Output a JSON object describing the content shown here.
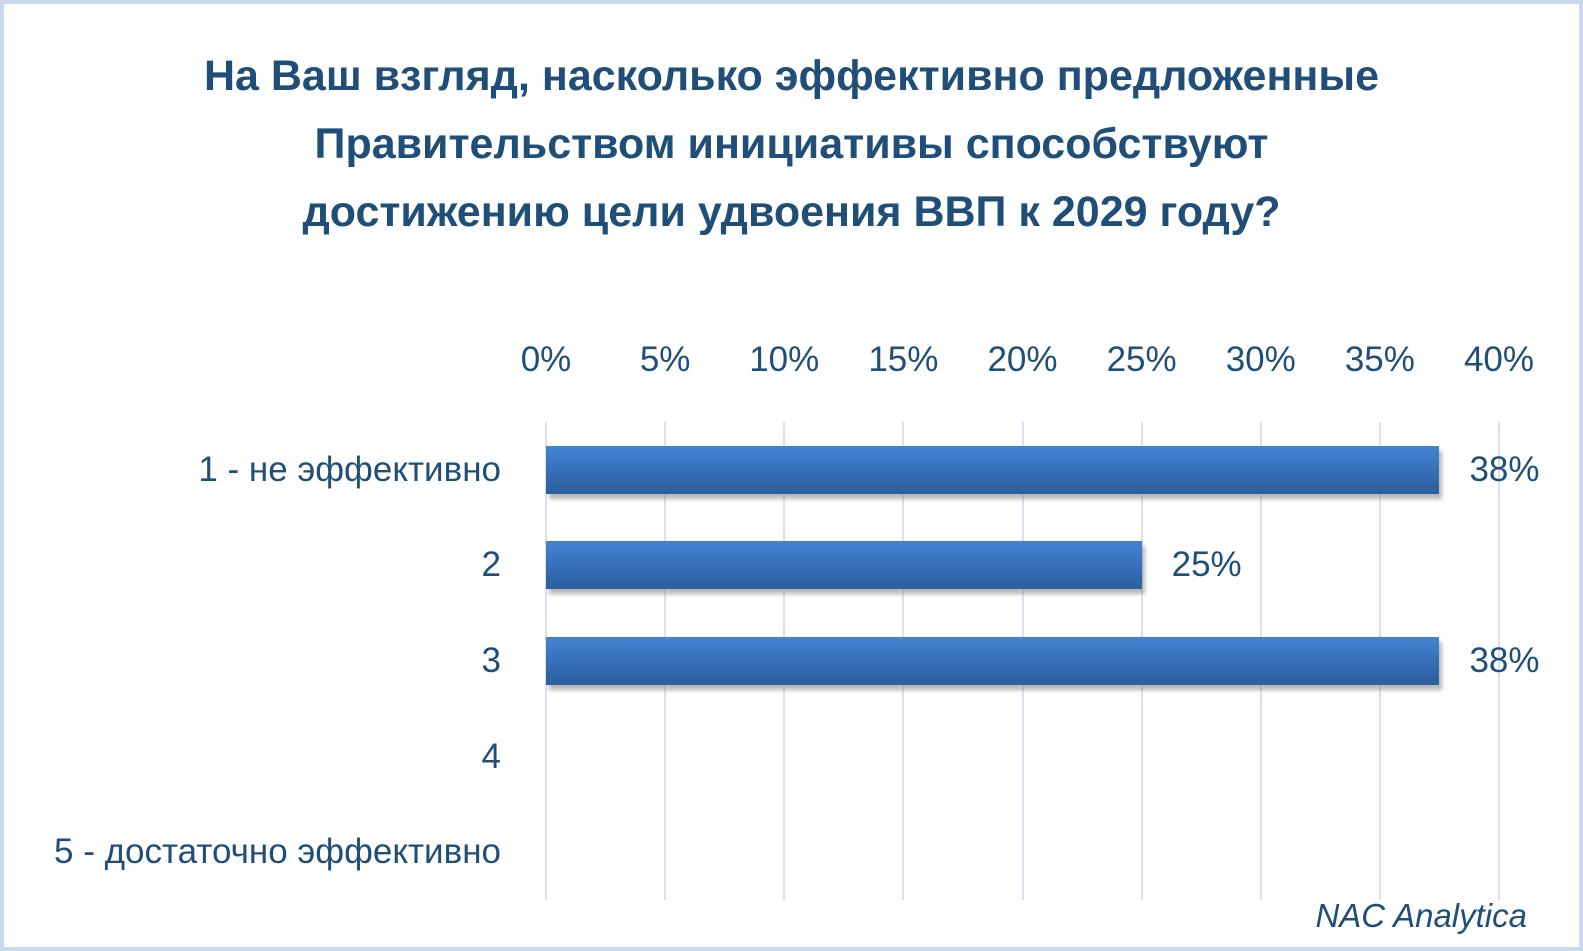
{
  "frame": {
    "border_color": "#c9d9ed",
    "background_color": "#ffffff"
  },
  "title": {
    "text": "На Ваш взгляд, насколько эффективно предложенные Правительством инициативы способствуют достижению цели удвоения ВВП к 2029 году?",
    "color": "#1f4e79"
  },
  "footer": {
    "source": "NAC Analytica"
  },
  "chart_data": {
    "type": "bar",
    "orientation": "horizontal",
    "title": "На Ваш взгляд, насколько эффективно предложенные Правительством инициативы способствуют достижению цели удвоения ВВП к 2029 году?",
    "categories": [
      "1 - не эффективно",
      "2",
      "3",
      "4",
      "5 - достаточно эффективно"
    ],
    "values": [
      37.5,
      25,
      37.5,
      0,
      0
    ],
    "value_labels": [
      "38%",
      "25%",
      "38%",
      "",
      ""
    ],
    "xlabel": "",
    "ylabel": "",
    "xlim": [
      0,
      40
    ],
    "x_ticks": [
      "0%",
      "5%",
      "10%",
      "15%",
      "20%",
      "25%",
      "30%",
      "35%",
      "40%"
    ],
    "x_tick_values": [
      0,
      5,
      10,
      15,
      20,
      25,
      30,
      35,
      40
    ],
    "grid": true,
    "legend": "none",
    "colors": {
      "bar_top": "#4583d1",
      "bar_bottom": "#2c5f9e",
      "gridline": "#d6e2f4",
      "text": "#1f4e79"
    }
  }
}
